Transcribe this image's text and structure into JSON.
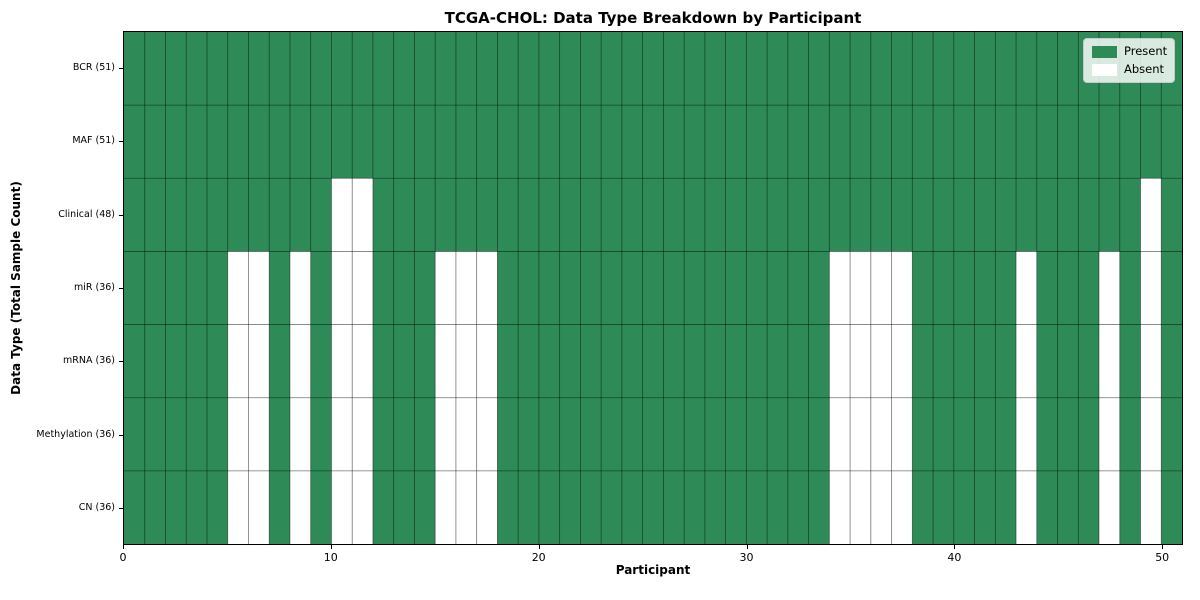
{
  "chart_data": {
    "type": "heatmap",
    "title": "TCGA-CHOL: Data Type Breakdown by Participant",
    "xlabel": "Participant",
    "ylabel": "Data Type (Total Sample Count)",
    "x_ticks": [
      0,
      10,
      20,
      30,
      40,
      50
    ],
    "x_range": [
      0,
      51
    ],
    "n_participants": 51,
    "grid": true,
    "legend_position": "upper right",
    "categories": [
      "BCR (51)",
      "MAF (51)",
      "Clinical (48)",
      "miR (36)",
      "mRNA (36)",
      "Methylation (36)",
      "CN (36)"
    ],
    "rows": [
      {
        "label": "BCR (51)",
        "present_count": 51,
        "absent_participants": []
      },
      {
        "label": "MAF (51)",
        "present_count": 51,
        "absent_participants": []
      },
      {
        "label": "Clinical (48)",
        "present_count": 48,
        "absent_participants": [
          10,
          11,
          49
        ]
      },
      {
        "label": "miR (36)",
        "present_count": 36,
        "absent_participants": [
          5,
          6,
          8,
          10,
          11,
          15,
          16,
          17,
          34,
          35,
          36,
          37,
          43,
          47,
          49
        ]
      },
      {
        "label": "mRNA (36)",
        "present_count": 36,
        "absent_participants": [
          5,
          6,
          8,
          10,
          11,
          15,
          16,
          17,
          34,
          35,
          36,
          37,
          43,
          47,
          49
        ]
      },
      {
        "label": "Methylation (36)",
        "present_count": 36,
        "absent_participants": [
          5,
          6,
          8,
          10,
          11,
          15,
          16,
          17,
          34,
          35,
          36,
          37,
          43,
          47,
          49
        ]
      },
      {
        "label": "CN (36)",
        "present_count": 36,
        "absent_participants": [
          5,
          6,
          8,
          10,
          11,
          15,
          16,
          17,
          34,
          35,
          36,
          37,
          43,
          47,
          49
        ]
      }
    ],
    "legend": {
      "entries": [
        {
          "label": "Present",
          "color": "#2e8b57"
        },
        {
          "label": "Absent",
          "color": "#ffffff"
        }
      ]
    },
    "colors": {
      "present": "#2e8b57",
      "absent": "#ffffff",
      "gridline": "rgba(0,0,0,0.5)",
      "frame": "#000000"
    }
  }
}
